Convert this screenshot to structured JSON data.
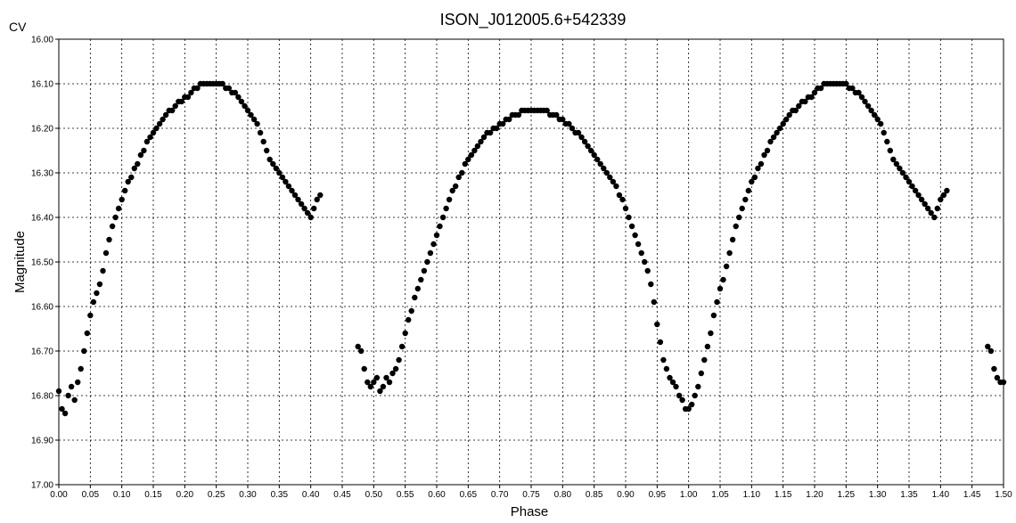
{
  "chart_data": {
    "type": "scatter",
    "title": "ISON_J012005.6+542339",
    "filter": "CV",
    "xlabel": "Phase",
    "ylabel": "Magnitude",
    "xlim": [
      0.0,
      1.5
    ],
    "ylim": [
      16.0,
      17.0
    ],
    "y_inverted": true,
    "grid": true,
    "x_ticks": [
      "0.00",
      "0.05",
      "0.10",
      "0.15",
      "0.20",
      "0.25",
      "0.30",
      "0.35",
      "0.40",
      "0.45",
      "0.50",
      "0.55",
      "0.60",
      "0.65",
      "0.70",
      "0.75",
      "0.80",
      "0.85",
      "0.90",
      "0.95",
      "1.00",
      "1.05",
      "1.10",
      "1.15",
      "1.20",
      "1.25",
      "1.30",
      "1.35",
      "1.40",
      "1.45",
      "1.50"
    ],
    "y_ticks": [
      "16.00",
      "16.10",
      "16.20",
      "16.30",
      "16.40",
      "16.50",
      "16.60",
      "16.70",
      "16.80",
      "16.90",
      "17.00"
    ],
    "marker_color": "#000000",
    "points": [
      [
        0.0,
        16.79
      ],
      [
        0.005,
        16.83
      ],
      [
        0.01,
        16.84
      ],
      [
        0.015,
        16.8
      ],
      [
        0.02,
        16.78
      ],
      [
        0.025,
        16.81
      ],
      [
        0.03,
        16.77
      ],
      [
        0.035,
        16.74
      ],
      [
        0.04,
        16.7
      ],
      [
        0.045,
        16.66
      ],
      [
        0.05,
        16.62
      ],
      [
        0.055,
        16.59
      ],
      [
        0.06,
        16.57
      ],
      [
        0.065,
        16.55
      ],
      [
        0.07,
        16.52
      ],
      [
        0.075,
        16.48
      ],
      [
        0.08,
        16.45
      ],
      [
        0.085,
        16.42
      ],
      [
        0.09,
        16.4
      ],
      [
        0.095,
        16.38
      ],
      [
        0.1,
        16.36
      ],
      [
        0.105,
        16.34
      ],
      [
        0.11,
        16.32
      ],
      [
        0.115,
        16.31
      ],
      [
        0.12,
        16.29
      ],
      [
        0.125,
        16.28
      ],
      [
        0.13,
        16.26
      ],
      [
        0.135,
        16.25
      ],
      [
        0.14,
        16.23
      ],
      [
        0.145,
        16.22
      ],
      [
        0.15,
        16.21
      ],
      [
        0.155,
        16.2
      ],
      [
        0.16,
        16.19
      ],
      [
        0.165,
        16.18
      ],
      [
        0.17,
        16.17
      ],
      [
        0.175,
        16.16
      ],
      [
        0.18,
        16.16
      ],
      [
        0.185,
        16.15
      ],
      [
        0.19,
        16.14
      ],
      [
        0.195,
        16.14
      ],
      [
        0.2,
        16.13
      ],
      [
        0.205,
        16.13
      ],
      [
        0.21,
        16.12
      ],
      [
        0.215,
        16.11
      ],
      [
        0.22,
        16.11
      ],
      [
        0.225,
        16.1
      ],
      [
        0.23,
        16.1
      ],
      [
        0.235,
        16.1
      ],
      [
        0.24,
        16.1
      ],
      [
        0.245,
        16.1
      ],
      [
        0.25,
        16.1
      ],
      [
        0.255,
        16.1
      ],
      [
        0.26,
        16.1
      ],
      [
        0.265,
        16.11
      ],
      [
        0.27,
        16.11
      ],
      [
        0.275,
        16.12
      ],
      [
        0.28,
        16.12
      ],
      [
        0.285,
        16.13
      ],
      [
        0.29,
        16.14
      ],
      [
        0.295,
        16.15
      ],
      [
        0.3,
        16.16
      ],
      [
        0.305,
        16.17
      ],
      [
        0.31,
        16.18
      ],
      [
        0.315,
        16.19
      ],
      [
        0.32,
        16.21
      ],
      [
        0.325,
        16.23
      ],
      [
        0.33,
        16.25
      ],
      [
        0.335,
        16.27
      ],
      [
        0.34,
        16.28
      ],
      [
        0.345,
        16.29
      ],
      [
        0.35,
        16.3
      ],
      [
        0.355,
        16.31
      ],
      [
        0.36,
        16.32
      ],
      [
        0.365,
        16.33
      ],
      [
        0.37,
        16.34
      ],
      [
        0.375,
        16.35
      ],
      [
        0.38,
        16.36
      ],
      [
        0.385,
        16.37
      ],
      [
        0.39,
        16.38
      ],
      [
        0.395,
        16.39
      ],
      [
        0.4,
        16.4
      ],
      [
        0.405,
        16.38
      ],
      [
        0.41,
        16.36
      ],
      [
        0.415,
        16.35
      ],
      [
        0.475,
        16.69
      ],
      [
        0.48,
        16.7
      ],
      [
        0.485,
        16.74
      ],
      [
        0.49,
        16.77
      ],
      [
        0.495,
        16.78
      ],
      [
        0.5,
        16.77
      ],
      [
        0.505,
        16.76
      ],
      [
        0.51,
        16.79
      ],
      [
        0.515,
        16.78
      ],
      [
        0.52,
        16.76
      ],
      [
        0.525,
        16.77
      ],
      [
        0.53,
        16.75
      ],
      [
        0.535,
        16.74
      ],
      [
        0.54,
        16.72
      ],
      [
        0.545,
        16.69
      ],
      [
        0.55,
        16.66
      ],
      [
        0.555,
        16.63
      ],
      [
        0.56,
        16.61
      ],
      [
        0.565,
        16.58
      ],
      [
        0.57,
        16.56
      ],
      [
        0.575,
        16.54
      ],
      [
        0.58,
        16.52
      ],
      [
        0.585,
        16.5
      ],
      [
        0.59,
        16.48
      ],
      [
        0.595,
        16.46
      ],
      [
        0.6,
        16.44
      ],
      [
        0.605,
        16.42
      ],
      [
        0.61,
        16.4
      ],
      [
        0.615,
        16.38
      ],
      [
        0.62,
        16.36
      ],
      [
        0.625,
        16.34
      ],
      [
        0.63,
        16.33
      ],
      [
        0.635,
        16.31
      ],
      [
        0.64,
        16.3
      ],
      [
        0.645,
        16.28
      ],
      [
        0.65,
        16.27
      ],
      [
        0.655,
        16.26
      ],
      [
        0.66,
        16.25
      ],
      [
        0.665,
        16.24
      ],
      [
        0.67,
        16.23
      ],
      [
        0.675,
        16.22
      ],
      [
        0.68,
        16.21
      ],
      [
        0.685,
        16.21
      ],
      [
        0.69,
        16.2
      ],
      [
        0.695,
        16.2
      ],
      [
        0.7,
        16.19
      ],
      [
        0.705,
        16.19
      ],
      [
        0.71,
        16.18
      ],
      [
        0.715,
        16.18
      ],
      [
        0.72,
        16.17
      ],
      [
        0.725,
        16.17
      ],
      [
        0.73,
        16.17
      ],
      [
        0.735,
        16.16
      ],
      [
        0.74,
        16.16
      ],
      [
        0.745,
        16.16
      ],
      [
        0.75,
        16.16
      ],
      [
        0.755,
        16.16
      ],
      [
        0.76,
        16.16
      ],
      [
        0.765,
        16.16
      ],
      [
        0.77,
        16.16
      ],
      [
        0.775,
        16.16
      ],
      [
        0.78,
        16.17
      ],
      [
        0.785,
        16.17
      ],
      [
        0.79,
        16.17
      ],
      [
        0.795,
        16.18
      ],
      [
        0.8,
        16.18
      ],
      [
        0.805,
        16.19
      ],
      [
        0.81,
        16.19
      ],
      [
        0.815,
        16.2
      ],
      [
        0.82,
        16.21
      ],
      [
        0.825,
        16.21
      ],
      [
        0.83,
        16.22
      ],
      [
        0.835,
        16.23
      ],
      [
        0.84,
        16.24
      ],
      [
        0.845,
        16.25
      ],
      [
        0.85,
        16.26
      ],
      [
        0.855,
        16.27
      ],
      [
        0.86,
        16.28
      ],
      [
        0.865,
        16.29
      ],
      [
        0.87,
        16.3
      ],
      [
        0.875,
        16.31
      ],
      [
        0.88,
        16.32
      ],
      [
        0.885,
        16.33
      ],
      [
        0.89,
        16.35
      ],
      [
        0.895,
        16.36
      ],
      [
        0.9,
        16.38
      ],
      [
        0.905,
        16.4
      ],
      [
        0.91,
        16.42
      ],
      [
        0.915,
        16.44
      ],
      [
        0.92,
        16.46
      ],
      [
        0.925,
        16.48
      ],
      [
        0.93,
        16.5
      ],
      [
        0.935,
        16.52
      ],
      [
        0.94,
        16.55
      ],
      [
        0.945,
        16.59
      ],
      [
        0.95,
        16.64
      ],
      [
        0.955,
        16.68
      ],
      [
        0.96,
        16.72
      ],
      [
        0.965,
        16.74
      ],
      [
        0.97,
        16.76
      ],
      [
        0.975,
        16.77
      ],
      [
        0.98,
        16.78
      ],
      [
        0.985,
        16.8
      ],
      [
        0.99,
        16.81
      ],
      [
        0.995,
        16.83
      ],
      [
        1.0,
        16.83
      ],
      [
        1.005,
        16.82
      ],
      [
        1.01,
        16.8
      ],
      [
        1.015,
        16.78
      ],
      [
        1.02,
        16.75
      ],
      [
        1.025,
        16.72
      ],
      [
        1.03,
        16.69
      ],
      [
        1.035,
        16.66
      ],
      [
        1.04,
        16.62
      ],
      [
        1.045,
        16.59
      ],
      [
        1.05,
        16.56
      ],
      [
        1.055,
        16.54
      ],
      [
        1.06,
        16.51
      ],
      [
        1.065,
        16.48
      ],
      [
        1.07,
        16.45
      ],
      [
        1.075,
        16.42
      ],
      [
        1.08,
        16.4
      ],
      [
        1.085,
        16.38
      ],
      [
        1.09,
        16.36
      ],
      [
        1.095,
        16.34
      ],
      [
        1.1,
        16.32
      ],
      [
        1.105,
        16.31
      ],
      [
        1.11,
        16.29
      ],
      [
        1.115,
        16.28
      ],
      [
        1.12,
        16.26
      ],
      [
        1.125,
        16.25
      ],
      [
        1.13,
        16.23
      ],
      [
        1.135,
        16.22
      ],
      [
        1.14,
        16.21
      ],
      [
        1.145,
        16.2
      ],
      [
        1.15,
        16.19
      ],
      [
        1.155,
        16.18
      ],
      [
        1.16,
        16.17
      ],
      [
        1.165,
        16.16
      ],
      [
        1.17,
        16.16
      ],
      [
        1.175,
        16.15
      ],
      [
        1.18,
        16.14
      ],
      [
        1.185,
        16.14
      ],
      [
        1.19,
        16.13
      ],
      [
        1.195,
        16.13
      ],
      [
        1.2,
        16.12
      ],
      [
        1.205,
        16.11
      ],
      [
        1.21,
        16.11
      ],
      [
        1.215,
        16.1
      ],
      [
        1.22,
        16.1
      ],
      [
        1.225,
        16.1
      ],
      [
        1.23,
        16.1
      ],
      [
        1.235,
        16.1
      ],
      [
        1.24,
        16.1
      ],
      [
        1.245,
        16.1
      ],
      [
        1.25,
        16.1
      ],
      [
        1.255,
        16.11
      ],
      [
        1.26,
        16.11
      ],
      [
        1.265,
        16.12
      ],
      [
        1.27,
        16.12
      ],
      [
        1.275,
        16.13
      ],
      [
        1.28,
        16.14
      ],
      [
        1.285,
        16.15
      ],
      [
        1.29,
        16.16
      ],
      [
        1.295,
        16.17
      ],
      [
        1.3,
        16.18
      ],
      [
        1.305,
        16.19
      ],
      [
        1.31,
        16.21
      ],
      [
        1.315,
        16.23
      ],
      [
        1.32,
        16.25
      ],
      [
        1.325,
        16.27
      ],
      [
        1.33,
        16.28
      ],
      [
        1.335,
        16.29
      ],
      [
        1.34,
        16.3
      ],
      [
        1.345,
        16.31
      ],
      [
        1.35,
        16.32
      ],
      [
        1.355,
        16.33
      ],
      [
        1.36,
        16.34
      ],
      [
        1.365,
        16.35
      ],
      [
        1.37,
        16.36
      ],
      [
        1.375,
        16.37
      ],
      [
        1.38,
        16.38
      ],
      [
        1.385,
        16.39
      ],
      [
        1.39,
        16.4
      ],
      [
        1.395,
        16.38
      ],
      [
        1.4,
        16.36
      ],
      [
        1.405,
        16.35
      ],
      [
        1.41,
        16.34
      ],
      [
        1.475,
        16.69
      ],
      [
        1.48,
        16.7
      ],
      [
        1.485,
        16.74
      ],
      [
        1.49,
        16.76
      ],
      [
        1.495,
        16.77
      ],
      [
        1.5,
        16.77
      ]
    ]
  }
}
